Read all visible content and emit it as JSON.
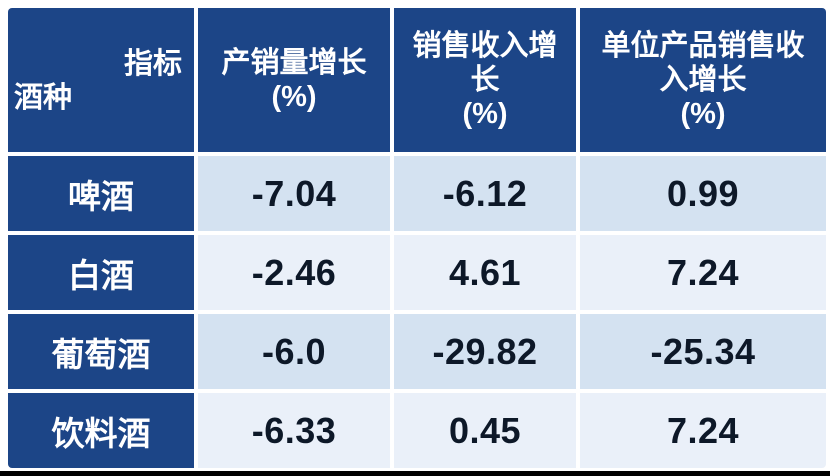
{
  "table": {
    "corner_header": {
      "indicator_label": "指标",
      "category_label": "酒种"
    },
    "columns": [
      {
        "lines": [
          "产销量增长",
          "(%)"
        ]
      },
      {
        "lines": [
          "销售收入增",
          "长",
          "(%)"
        ]
      },
      {
        "lines": [
          "单位产品销售收",
          "入增长",
          "(%)"
        ]
      }
    ],
    "rows": [
      {
        "label": "啤酒",
        "values": [
          "-7.04",
          "-6.12",
          "0.99"
        ]
      },
      {
        "label": "白酒",
        "values": [
          "-2.46",
          "4.61",
          "7.24"
        ]
      },
      {
        "label": "葡萄酒",
        "values": [
          "-6.0",
          "-29.82",
          "-25.34"
        ]
      },
      {
        "label": "饮料酒",
        "values": [
          "-6.33",
          "0.45",
          "7.24"
        ]
      }
    ],
    "colors": {
      "header_bg": "#1c4587",
      "row_odd_bg": "#d4e2f1",
      "row_even_bg": "#eaf0f9",
      "header_text": "#ffffff",
      "value_text": "#0d1828",
      "bottom_bar": "#000000",
      "background": "#ffffff"
    }
  },
  "chart_data": {
    "type": "table",
    "title": "",
    "row_header_label": "酒种",
    "column_header_label": "指标",
    "categories": [
      "啤酒",
      "白酒",
      "葡萄酒",
      "饮料酒"
    ],
    "series": [
      {
        "name": "产销量增长(%)",
        "values": [
          -7.04,
          -2.46,
          -6.0,
          -6.33
        ]
      },
      {
        "name": "销售收入增长(%)",
        "values": [
          -6.12,
          4.61,
          -29.82,
          0.45
        ]
      },
      {
        "name": "单位产品销售收入增长(%)",
        "values": [
          0.99,
          7.24,
          -25.34,
          7.24
        ]
      }
    ]
  }
}
